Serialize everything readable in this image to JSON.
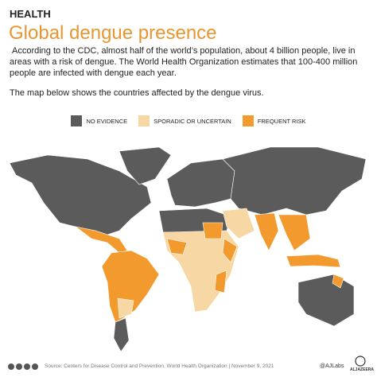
{
  "header": {
    "kicker": "HEALTH",
    "title": "Global dengue presence"
  },
  "intro": [
    "According to the CDC, almost half of the world’s population, about 4 billion people, live in areas with a risk of dengue. The World Health Organization estimates that 100-400 million people are infected with dengue each year.",
    "The map below shows the countries affected by the dengue virus."
  ],
  "legend": [
    {
      "label": "NO EVIDENCE",
      "color": "#5b5b5b"
    },
    {
      "label": "SPORADIC OR UNCERTAIN",
      "color": "#f7d7a3"
    },
    {
      "label": "FREQUENT RISK",
      "color": "#f39a2e"
    }
  ],
  "footer": {
    "source": "Source: Centers for Disease Control and Prevention, World Health Organization | November 9, 2021",
    "handle": "@AJLabs",
    "brand": "ALJAZEERA"
  }
}
